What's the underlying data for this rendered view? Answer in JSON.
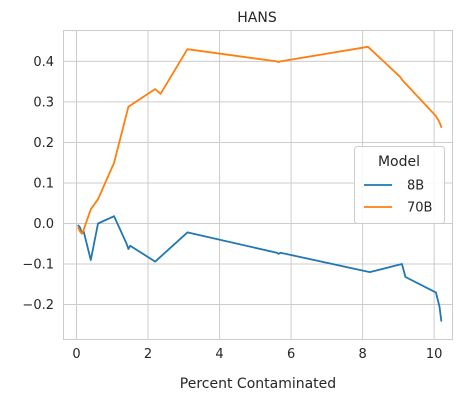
{
  "chart_data": {
    "type": "line",
    "title": "HANS",
    "xlabel": "Percent Contaminated",
    "ylabel": "",
    "xlim": [
      -0.35,
      10.5
    ],
    "ylim": [
      -0.285,
      0.475
    ],
    "xticks": [
      0,
      2,
      4,
      6,
      8,
      10
    ],
    "yticks": [
      -0.2,
      -0.1,
      0.0,
      0.1,
      0.2,
      0.3,
      0.4
    ],
    "ytick_labels": [
      "−0.2",
      "−0.1",
      "0.0",
      "0.1",
      "0.2",
      "0.3",
      "0.4"
    ],
    "grid": true,
    "legend": {
      "title": "Model",
      "placement": "right"
    },
    "series": [
      {
        "name": "8B",
        "color": "#1f77b4",
        "x": [
          0.05,
          0.1,
          0.15,
          0.2,
          0.4,
          0.6,
          1.05,
          1.4,
          1.45,
          1.5,
          2.2,
          3.1,
          5.6,
          5.65,
          5.7,
          8.2,
          9.1,
          9.2,
          10.0,
          10.05,
          10.15,
          10.2
        ],
        "y": [
          -0.005,
          -0.01,
          -0.025,
          -0.02,
          -0.09,
          0.0,
          0.018,
          -0.05,
          -0.063,
          -0.055,
          -0.094,
          -0.022,
          -0.072,
          -0.075,
          -0.072,
          -0.12,
          -0.1,
          -0.132,
          -0.168,
          -0.17,
          -0.205,
          -0.24
        ]
      },
      {
        "name": "70B",
        "color": "#ff7f0e",
        "x": [
          0.05,
          0.1,
          0.15,
          0.2,
          0.4,
          0.6,
          1.05,
          1.45,
          2.2,
          2.35,
          3.1,
          5.6,
          5.65,
          5.7,
          8.15,
          9.05,
          9.1,
          10.0,
          10.05,
          10.15,
          10.2
        ],
        "y": [
          -0.01,
          -0.02,
          -0.025,
          -0.015,
          0.035,
          0.06,
          0.15,
          0.288,
          0.332,
          0.32,
          0.43,
          0.4,
          0.398,
          0.4,
          0.436,
          0.362,
          0.355,
          0.27,
          0.265,
          0.25,
          0.238
        ]
      }
    ]
  }
}
